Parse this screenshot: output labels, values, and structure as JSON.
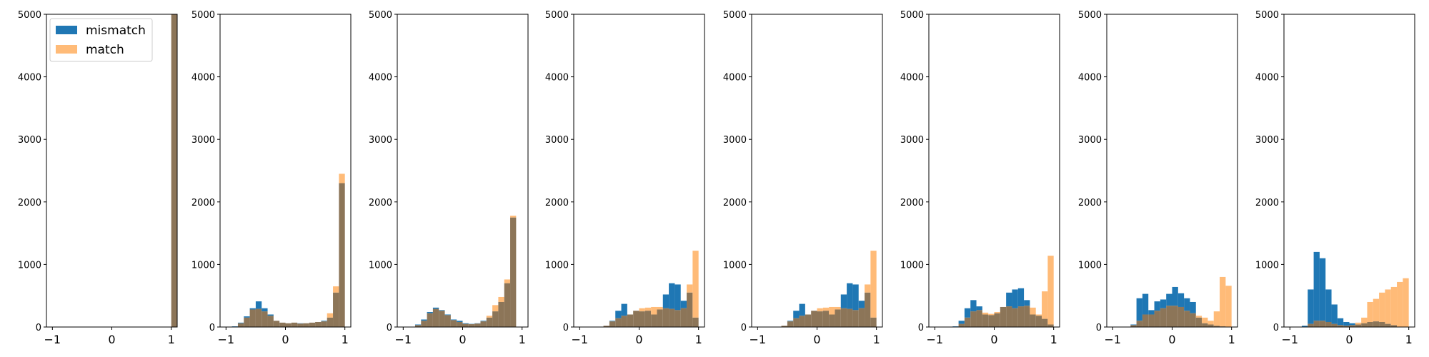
{
  "colors": {
    "mismatch": "#1f77b4",
    "match": "#ffbb78",
    "overlap": "#8c7558"
  },
  "legend": {
    "placement": "upper left",
    "entries": [
      "mismatch",
      "match"
    ]
  },
  "chart_data": [
    {
      "type": "bar",
      "bins_x": [
        -1.0,
        -0.9,
        -0.8,
        -0.7,
        -0.6,
        -0.5,
        -0.4,
        -0.3,
        -0.2,
        -0.1,
        0.0,
        0.1,
        0.2,
        0.3,
        0.4,
        0.5,
        0.6,
        0.7,
        0.8,
        0.9,
        1.0
      ],
      "series": [
        {
          "name": "mismatch",
          "values": [
            0,
            0,
            0,
            0,
            0,
            0,
            0,
            0,
            0,
            0,
            0,
            0,
            0,
            0,
            0,
            0,
            0,
            0,
            0,
            0,
            5000
          ]
        },
        {
          "name": "match",
          "values": [
            0,
            0,
            0,
            0,
            0,
            0,
            0,
            0,
            0,
            0,
            0,
            0,
            0,
            0,
            0,
            0,
            0,
            0,
            0,
            0,
            5000
          ]
        }
      ],
      "xlim": [
        -1.1,
        1.1
      ],
      "ylim": [
        0,
        5000
      ],
      "xticks": [
        "−1",
        "0",
        "1"
      ],
      "yticks": [
        "0",
        "1000",
        "2000",
        "3000",
        "4000",
        "5000"
      ]
    },
    {
      "type": "bar",
      "bins_x": [
        -0.9,
        -0.8,
        -0.7,
        -0.6,
        -0.5,
        -0.4,
        -0.3,
        -0.2,
        -0.1,
        0.0,
        0.1,
        0.2,
        0.3,
        0.4,
        0.5,
        0.6,
        0.7,
        0.8,
        0.9,
        1.0
      ],
      "series": [
        {
          "name": "mismatch",
          "values": [
            10,
            70,
            170,
            300,
            410,
            300,
            200,
            100,
            70,
            60,
            70,
            60,
            60,
            70,
            80,
            100,
            150,
            550,
            2300,
            0
          ]
        },
        {
          "name": "match",
          "values": [
            5,
            60,
            150,
            280,
            290,
            250,
            180,
            100,
            70,
            60,
            70,
            55,
            60,
            70,
            80,
            90,
            220,
            650,
            2450,
            0
          ]
        }
      ],
      "xlim": [
        -1.1,
        1.1
      ],
      "ylim": [
        0,
        5000
      ],
      "xticks": [
        "−1",
        "0",
        "1"
      ],
      "yticks": [
        "0",
        "1000",
        "2000",
        "3000",
        "4000",
        "5000"
      ]
    },
    {
      "type": "bar",
      "bins_x": [
        -0.9,
        -0.8,
        -0.7,
        -0.6,
        -0.5,
        -0.4,
        -0.3,
        -0.2,
        -0.1,
        0.0,
        0.1,
        0.2,
        0.3,
        0.4,
        0.5,
        0.6,
        0.7,
        0.8,
        0.9,
        1.0
      ],
      "series": [
        {
          "name": "mismatch",
          "values": [
            5,
            40,
            120,
            240,
            310,
            270,
            200,
            120,
            100,
            60,
            50,
            60,
            100,
            150,
            250,
            400,
            700,
            1750,
            0,
            0
          ]
        },
        {
          "name": "match",
          "values": [
            5,
            30,
            100,
            220,
            290,
            260,
            190,
            110,
            80,
            50,
            45,
            55,
            90,
            180,
            350,
            480,
            760,
            1780,
            0,
            0
          ]
        }
      ],
      "xlim": [
        -1.1,
        1.1
      ],
      "ylim": [
        0,
        5000
      ],
      "xticks": [
        "−1",
        "0",
        "1"
      ],
      "yticks": [
        "0",
        "1000",
        "2000",
        "3000",
        "4000",
        "5000"
      ]
    },
    {
      "type": "bar",
      "bins_x": [
        -0.7,
        -0.6,
        -0.5,
        -0.4,
        -0.3,
        -0.2,
        -0.1,
        0.0,
        0.1,
        0.2,
        0.3,
        0.4,
        0.5,
        0.6,
        0.7,
        0.8,
        0.9,
        1.0
      ],
      "series": [
        {
          "name": "mismatch",
          "values": [
            5,
            20,
            100,
            260,
            370,
            200,
            260,
            250,
            260,
            200,
            280,
            520,
            700,
            680,
            420,
            550,
            150,
            0
          ]
        },
        {
          "name": "match",
          "values": [
            5,
            20,
            90,
            140,
            180,
            200,
            260,
            300,
            310,
            320,
            320,
            300,
            290,
            270,
            300,
            680,
            1220,
            0
          ]
        }
      ],
      "xlim": [
        -1.1,
        1.1
      ],
      "ylim": [
        0,
        5000
      ],
      "xticks": [
        "−1",
        "0",
        "1"
      ],
      "yticks": [
        "0",
        "1000",
        "2000",
        "3000",
        "4000",
        "5000"
      ]
    },
    {
      "type": "bar",
      "bins_x": [
        -0.7,
        -0.6,
        -0.5,
        -0.4,
        -0.3,
        -0.2,
        -0.1,
        0.0,
        0.1,
        0.2,
        0.3,
        0.4,
        0.5,
        0.6,
        0.7,
        0.8,
        0.9,
        1.0
      ],
      "series": [
        {
          "name": "mismatch",
          "values": [
            5,
            20,
            100,
            260,
            370,
            200,
            260,
            250,
            260,
            200,
            280,
            520,
            700,
            680,
            420,
            550,
            150,
            0
          ]
        },
        {
          "name": "match",
          "values": [
            5,
            20,
            90,
            140,
            180,
            200,
            260,
            300,
            310,
            320,
            320,
            300,
            290,
            270,
            300,
            680,
            1220,
            0
          ]
        }
      ],
      "xlim": [
        -1.1,
        1.1
      ],
      "ylim": [
        0,
        5000
      ],
      "xticks": [
        "−1",
        "0",
        "1"
      ],
      "yticks": [
        "0",
        "1000",
        "2000",
        "3000",
        "4000",
        "5000"
      ]
    },
    {
      "type": "bar",
      "bins_x": [
        -0.7,
        -0.6,
        -0.5,
        -0.4,
        -0.3,
        -0.2,
        -0.1,
        0.0,
        0.1,
        0.2,
        0.3,
        0.4,
        0.5,
        0.6,
        0.7,
        0.8,
        0.9,
        1.0
      ],
      "series": [
        {
          "name": "mismatch",
          "values": [
            10,
            100,
            300,
            430,
            330,
            200,
            190,
            220,
            320,
            550,
            600,
            620,
            430,
            200,
            180,
            130,
            40,
            0
          ]
        },
        {
          "name": "match",
          "values": [
            5,
            50,
            150,
            250,
            270,
            230,
            210,
            240,
            320,
            330,
            300,
            330,
            340,
            310,
            200,
            570,
            1140,
            0
          ]
        }
      ],
      "xlim": [
        -1.1,
        1.1
      ],
      "ylim": [
        0,
        5000
      ],
      "xticks": [
        "−1",
        "0",
        "1"
      ],
      "yticks": [
        "0",
        "1000",
        "2000",
        "3000",
        "4000",
        "5000"
      ]
    },
    {
      "type": "bar",
      "bins_x": [
        -0.8,
        -0.7,
        -0.6,
        -0.5,
        -0.4,
        -0.3,
        -0.2,
        -0.1,
        0.0,
        0.1,
        0.2,
        0.3,
        0.4,
        0.5,
        0.6,
        0.7,
        0.8,
        0.9,
        1.0
      ],
      "series": [
        {
          "name": "mismatch",
          "values": [
            5,
            40,
            460,
            530,
            270,
            410,
            440,
            530,
            640,
            540,
            460,
            400,
            150,
            60,
            40,
            20,
            10,
            0,
            0
          ]
        },
        {
          "name": "match",
          "values": [
            5,
            30,
            100,
            200,
            200,
            260,
            300,
            340,
            340,
            320,
            260,
            220,
            180,
            150,
            100,
            250,
            800,
            660,
            0
          ]
        }
      ],
      "xlim": [
        -1.1,
        1.1
      ],
      "ylim": [
        0,
        5000
      ],
      "xticks": [
        "−1",
        "0",
        "1"
      ],
      "yticks": [
        "0",
        "1000",
        "2000",
        "3000",
        "4000",
        "5000"
      ]
    },
    {
      "type": "bar",
      "bins_x": [
        -0.8,
        -0.7,
        -0.6,
        -0.5,
        -0.4,
        -0.3,
        -0.2,
        -0.1,
        0.0,
        0.1,
        0.2,
        0.3,
        0.4,
        0.5,
        0.6,
        0.7,
        0.8,
        0.9,
        1.0
      ],
      "series": [
        {
          "name": "mismatch",
          "values": [
            20,
            600,
            1200,
            1100,
            600,
            360,
            140,
            80,
            60,
            40,
            60,
            80,
            90,
            80,
            50,
            30,
            0,
            0,
            0
          ]
        },
        {
          "name": "match",
          "values": [
            0,
            50,
            100,
            100,
            80,
            50,
            30,
            20,
            30,
            70,
            150,
            400,
            450,
            550,
            600,
            640,
            720,
            780,
            0
          ]
        }
      ],
      "xlim": [
        -1.1,
        1.1
      ],
      "ylim": [
        0,
        5000
      ],
      "xticks": [
        "−1",
        "0",
        "1"
      ],
      "yticks": [
        "0",
        "1000",
        "2000",
        "3000",
        "4000",
        "5000"
      ]
    }
  ]
}
